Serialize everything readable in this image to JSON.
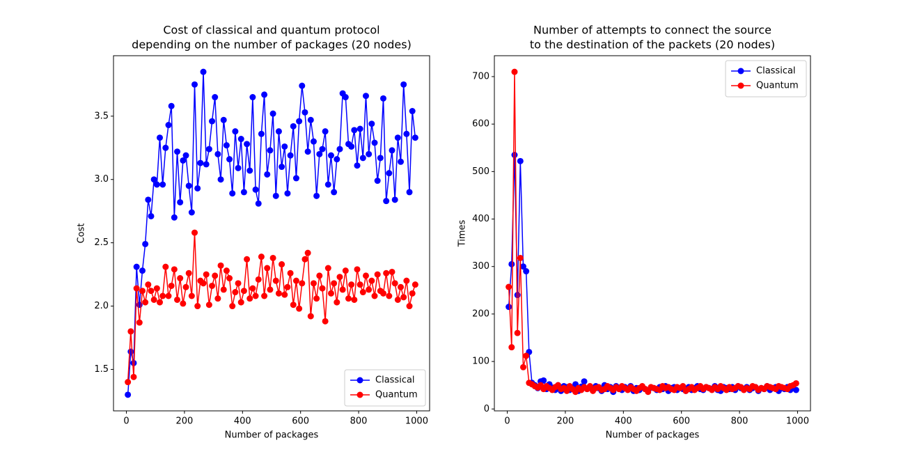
{
  "chart_data": [
    {
      "type": "line",
      "title": [
        "Cost of classical and quantum protocol",
        "depending on the number of packages (20 nodes)"
      ],
      "xlabel": "Number of packages",
      "ylabel": "Cost",
      "legend": "lower right",
      "xlim": [
        -44.5,
        1044.5
      ],
      "xticks": [
        0,
        200,
        400,
        600,
        800,
        1000
      ],
      "ylim": [
        1.1725,
        3.9775
      ],
      "yticks": [
        1.5,
        {
          "value": 2,
          "label": "2.0"
        },
        2.5,
        {
          "value": 3,
          "label": "3.0"
        },
        3.5
      ],
      "x": [
        5,
        15,
        25,
        35,
        45,
        55,
        65,
        75,
        85,
        95,
        105,
        115,
        125,
        135,
        145,
        155,
        165,
        175,
        185,
        195,
        205,
        215,
        225,
        235,
        245,
        255,
        265,
        275,
        285,
        295,
        305,
        315,
        325,
        335,
        345,
        355,
        365,
        375,
        385,
        395,
        405,
        415,
        425,
        435,
        445,
        455,
        465,
        475,
        485,
        495,
        505,
        515,
        525,
        535,
        545,
        555,
        565,
        575,
        585,
        595,
        605,
        615,
        625,
        635,
        645,
        655,
        665,
        675,
        685,
        695,
        705,
        715,
        725,
        735,
        745,
        755,
        765,
        775,
        785,
        795,
        805,
        815,
        825,
        835,
        845,
        855,
        865,
        875,
        885,
        895,
        905,
        915,
        925,
        935,
        945,
        955,
        965,
        975,
        985,
        995
      ],
      "series": [
        {
          "name": "Classical",
          "color": "#0000ff",
          "values": [
            1.3,
            1.64,
            1.55,
            2.31,
            2.01,
            2.28,
            2.49,
            2.84,
            2.71,
            3.0,
            2.96,
            3.33,
            2.96,
            3.25,
            3.43,
            3.58,
            2.7,
            3.22,
            2.82,
            3.15,
            3.19,
            2.95,
            2.74,
            3.75,
            2.93,
            3.13,
            3.85,
            3.12,
            3.24,
            3.46,
            3.65,
            3.2,
            3.0,
            3.47,
            3.27,
            3.16,
            2.89,
            3.38,
            3.09,
            3.32,
            2.9,
            3.28,
            3.07,
            3.65,
            2.92,
            2.81,
            3.36,
            3.67,
            3.04,
            3.23,
            3.52,
            2.87,
            3.38,
            3.1,
            3.26,
            2.89,
            3.19,
            3.42,
            3.01,
            3.46,
            3.74,
            3.53,
            3.22,
            3.47,
            3.3,
            2.87,
            3.2,
            3.24,
            3.38,
            2.96,
            3.19,
            2.9,
            3.16,
            3.24,
            3.68,
            3.65,
            3.28,
            3.26,
            3.39,
            3.11,
            3.4,
            3.17,
            3.66,
            3.2,
            3.44,
            3.29,
            2.99,
            3.17,
            3.64,
            2.83,
            3.05,
            3.23,
            2.84,
            3.33,
            3.14,
            3.75,
            3.36,
            2.9,
            3.54,
            3.33
          ]
        },
        {
          "name": "Quantum",
          "color": "#ff0000",
          "values": [
            1.4,
            1.8,
            1.44,
            2.14,
            1.87,
            2.12,
            2.03,
            2.17,
            2.12,
            2.05,
            2.14,
            2.03,
            2.08,
            2.31,
            2.08,
            2.16,
            2.29,
            2.05,
            2.22,
            2.02,
            2.15,
            2.26,
            2.08,
            2.58,
            2.0,
            2.2,
            2.18,
            2.25,
            2.01,
            2.16,
            2.24,
            2.06,
            2.32,
            2.13,
            2.28,
            2.22,
            2.0,
            2.11,
            2.18,
            2.03,
            2.12,
            2.37,
            2.06,
            2.14,
            2.08,
            2.21,
            2.39,
            2.08,
            2.3,
            2.13,
            2.38,
            2.2,
            2.1,
            2.33,
            2.09,
            2.15,
            2.26,
            2.01,
            2.2,
            1.98,
            2.18,
            2.37,
            2.42,
            1.92,
            2.18,
            2.06,
            2.24,
            2.14,
            1.88,
            2.3,
            2.1,
            2.18,
            2.03,
            2.23,
            2.13,
            2.28,
            2.06,
            2.17,
            2.05,
            2.29,
            2.17,
            2.11,
            2.24,
            2.13,
            2.2,
            2.08,
            2.25,
            2.12,
            2.1,
            2.26,
            2.08,
            2.27,
            2.18,
            2.05,
            2.15,
            2.07,
            2.2,
            2.0,
            2.1,
            2.17
          ]
        }
      ]
    },
    {
      "type": "line",
      "title": [
        "Number of attempts to connect the source",
        "to the destination of the packets (20 nodes)"
      ],
      "xlabel": "Number of packages",
      "ylabel": "Times",
      "legend": "upper right",
      "xlim": [
        -44.5,
        1044.5
      ],
      "xticks": [
        0,
        200,
        400,
        600,
        800,
        1000
      ],
      "ylim": [
        -4,
        744
      ],
      "yticks": [
        0,
        100,
        200,
        300,
        400,
        500,
        600,
        700
      ],
      "x": [
        5,
        15,
        25,
        35,
        45,
        55,
        65,
        75,
        85,
        95,
        105,
        115,
        125,
        135,
        145,
        155,
        165,
        175,
        185,
        195,
        205,
        215,
        225,
        235,
        245,
        255,
        265,
        275,
        285,
        295,
        305,
        315,
        325,
        335,
        345,
        355,
        365,
        375,
        385,
        395,
        405,
        415,
        425,
        435,
        445,
        455,
        465,
        475,
        485,
        495,
        505,
        515,
        525,
        535,
        545,
        555,
        565,
        575,
        585,
        595,
        605,
        615,
        625,
        635,
        645,
        655,
        665,
        675,
        685,
        695,
        705,
        715,
        725,
        735,
        745,
        755,
        765,
        775,
        785,
        795,
        805,
        815,
        825,
        835,
        845,
        855,
        865,
        875,
        885,
        895,
        905,
        915,
        925,
        935,
        945,
        955,
        965,
        975,
        985,
        995
      ],
      "series": [
        {
          "name": "Classical",
          "color": "#0000ff",
          "values": [
            215,
            305,
            535,
            240,
            522,
            300,
            290,
            120,
            55,
            50,
            44,
            58,
            60,
            42,
            52,
            45,
            40,
            50,
            38,
            48,
            46,
            40,
            44,
            52,
            38,
            47,
            58,
            42,
            45,
            40,
            48,
            44,
            38,
            50,
            42,
            46,
            36,
            48,
            44,
            40,
            46,
            42,
            48,
            38,
            44,
            40,
            46,
            42,
            38,
            45,
            44,
            40,
            46,
            42,
            48,
            38,
            44,
            46,
            40,
            44,
            42,
            38,
            46,
            40,
            44,
            48,
            42,
            40,
            46,
            44,
            42,
            48,
            40,
            38,
            46,
            44,
            42,
            46,
            40,
            48,
            44,
            42,
            46,
            40,
            44,
            46,
            38,
            44,
            42,
            48,
            40,
            44,
            46,
            38,
            44,
            42,
            46,
            40,
            44,
            40
          ]
        },
        {
          "name": "Quantum",
          "color": "#ff0000",
          "values": [
            257,
            130,
            710,
            160,
            318,
            88,
            112,
            55,
            52,
            48,
            45,
            50,
            42,
            48,
            44,
            40,
            46,
            50,
            42,
            44,
            38,
            48,
            42,
            36,
            44,
            40,
            46,
            42,
            48,
            38,
            44,
            46,
            40,
            42,
            48,
            44,
            40,
            46,
            42,
            48,
            44,
            40,
            46,
            42,
            38,
            44,
            48,
            42,
            36,
            46,
            44,
            42,
            40,
            48,
            44,
            46,
            42,
            40,
            46,
            44,
            48,
            38,
            42,
            46,
            40,
            44,
            48,
            42,
            46,
            44,
            40,
            46,
            42,
            48,
            44,
            40,
            46,
            42,
            44,
            48,
            46,
            40,
            44,
            42,
            48,
            46,
            40,
            44,
            42,
            48,
            46,
            44,
            42,
            48,
            46,
            44,
            42,
            48,
            50,
            54
          ]
        }
      ]
    }
  ]
}
